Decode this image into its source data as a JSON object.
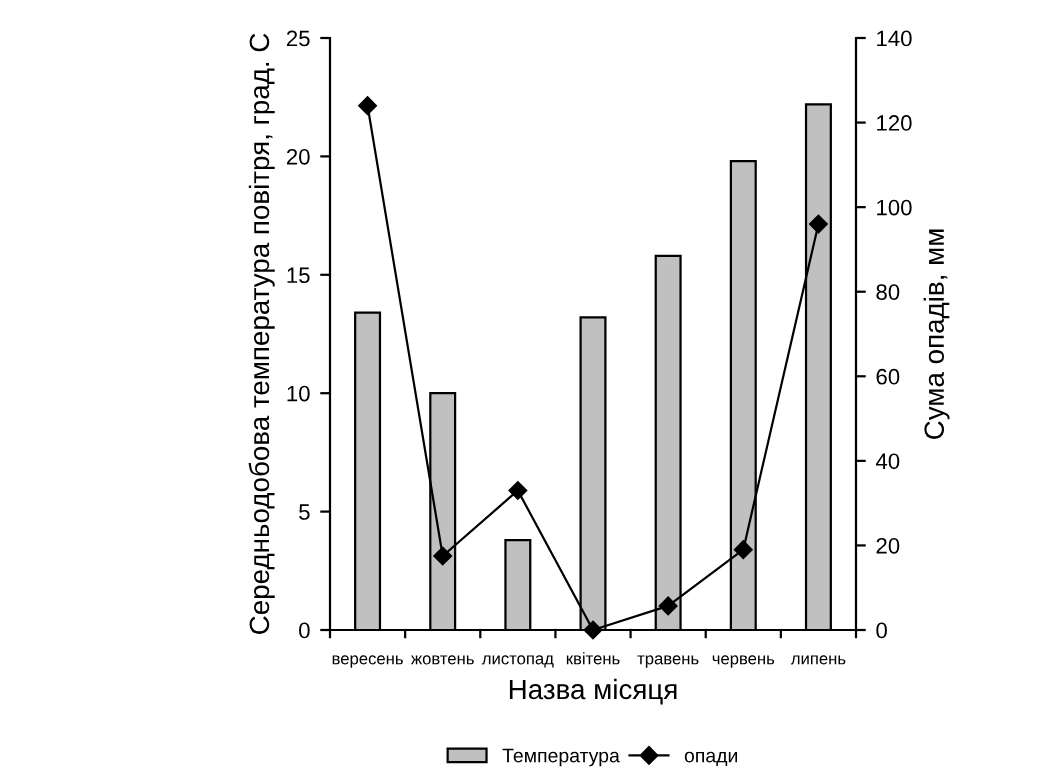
{
  "chart_data": {
    "type": "bar",
    "xlabel": "Назва місяця",
    "ylabel": "Середньодобова температура повітря, град. С",
    "y2label": "Сума опадів, мм",
    "categories": [
      "вересень",
      "жовтень",
      "листопад",
      "квітень",
      "травень",
      "червень",
      "липень"
    ],
    "series": [
      {
        "name": "Температура",
        "color": "#c0c0c0",
        "values": [
          13.4,
          10.0,
          3.8,
          13.2,
          15.8,
          19.8,
          22.2
        ]
      },
      {
        "name": "опади",
        "type": "line",
        "axis": "y2",
        "color": "#000000",
        "marker": "diamond",
        "values": [
          124,
          17.5,
          33,
          0,
          5.7,
          19,
          96
        ]
      }
    ],
    "ylim": [
      0,
      25
    ],
    "yticks": [
      0,
      5,
      10,
      15,
      20,
      25
    ],
    "y2lim": [
      0,
      140
    ],
    "y2ticks": [
      0,
      20,
      40,
      60,
      80,
      100,
      120,
      140
    ],
    "grid": false,
    "legend": "bottom"
  }
}
